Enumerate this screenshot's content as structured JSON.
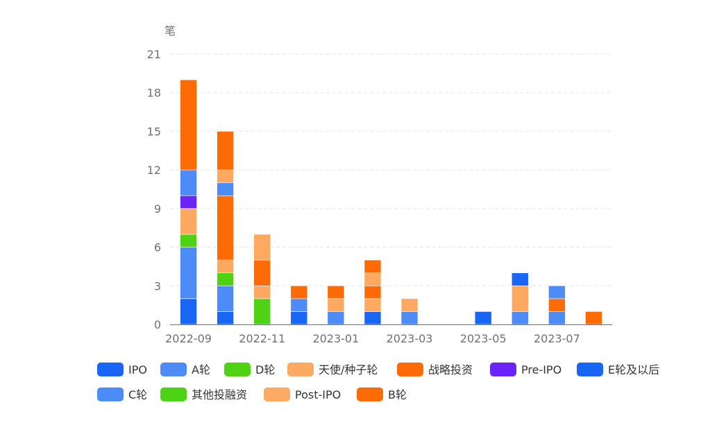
{
  "chart_data": {
    "type": "bar",
    "stacked": true,
    "y_unit": "笔",
    "ylim": [
      0,
      21
    ],
    "y_ticks": [
      0,
      3,
      6,
      9,
      12,
      15,
      18,
      21
    ],
    "grid": "horizontal-dashed",
    "legend_position": "bottom",
    "months": [
      "2022-09",
      "2022-10",
      "2022-11",
      "2022-12",
      "2023-01",
      "2023-02",
      "2023-03",
      "2023-04",
      "2023-05",
      "2023-06",
      "2023-07",
      "2023-08"
    ],
    "x_tick_labels": [
      "2022-09",
      "2022-11",
      "2023-01",
      "2023-03",
      "2023-05",
      "2023-07"
    ],
    "series": [
      {
        "name": "IPO",
        "color": "#1a66f4",
        "values": [
          2,
          1,
          0,
          1,
          0,
          1,
          0,
          0,
          0,
          0,
          0,
          0
        ]
      },
      {
        "name": "A轮",
        "color": "#4d8cf7",
        "values": [
          4,
          2,
          0,
          1,
          1,
          0,
          1,
          0,
          0,
          1,
          1,
          0
        ]
      },
      {
        "name": "D轮",
        "color": "#4fd114",
        "values": [
          1,
          1,
          2,
          0,
          0,
          0,
          0,
          0,
          0,
          0,
          0,
          0
        ]
      },
      {
        "name": "天使/种子轮",
        "color": "#fda961",
        "values": [
          2,
          1,
          1,
          0,
          1,
          1,
          1,
          0,
          0,
          2,
          0,
          0
        ]
      },
      {
        "name": "战略投资",
        "color": "#fc6b06",
        "values": [
          0,
          5,
          2,
          1,
          1,
          1,
          0,
          0,
          0,
          0,
          1,
          1
        ]
      },
      {
        "name": "Pre-IPO",
        "color": "#6b24f7",
        "values": [
          1,
          0,
          0,
          0,
          0,
          0,
          0,
          0,
          0,
          0,
          0,
          0
        ]
      },
      {
        "name": "E轮及以后",
        "color": "#1a66f4",
        "values": [
          0,
          0,
          0,
          0,
          0,
          0,
          0,
          0,
          1,
          1,
          0,
          0
        ]
      },
      {
        "name": "C轮",
        "color": "#4d8cf7",
        "values": [
          2,
          1,
          0,
          0,
          0,
          0,
          0,
          0,
          0,
          0,
          1,
          0
        ]
      },
      {
        "name": "其他投融资",
        "color": "#4fd114",
        "values": [
          0,
          0,
          0,
          0,
          0,
          0,
          0,
          0,
          0,
          0,
          0,
          0
        ]
      },
      {
        "name": "Post-IPO",
        "color": "#fda961",
        "values": [
          0,
          1,
          2,
          0,
          0,
          1,
          0,
          0,
          0,
          0,
          0,
          0
        ]
      },
      {
        "name": "B轮",
        "color": "#fc6b06",
        "values": [
          7,
          3,
          0,
          0,
          0,
          1,
          0,
          0,
          0,
          0,
          0,
          0
        ]
      }
    ]
  }
}
